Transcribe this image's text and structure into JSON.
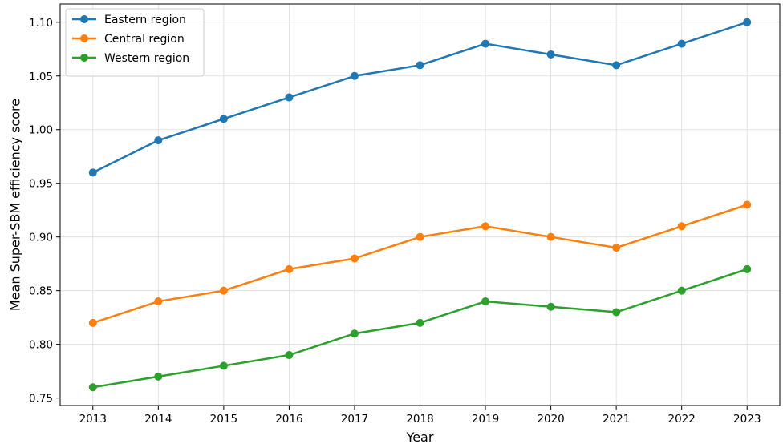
{
  "chart_data": {
    "type": "line",
    "title": "",
    "xlabel": "Year",
    "ylabel": "Mean Super-SBM efficiency score",
    "x": [
      2013,
      2014,
      2015,
      2016,
      2017,
      2018,
      2019,
      2020,
      2021,
      2022,
      2023
    ],
    "x_tick_labels": [
      "2013",
      "2014",
      "2015",
      "2016",
      "2017",
      "2018",
      "2019",
      "2020",
      "2021",
      "2022",
      "2023"
    ],
    "y_ticks": [
      0.75,
      0.8,
      0.85,
      0.9,
      0.95,
      1.0,
      1.05,
      1.1
    ],
    "y_tick_labels": [
      "0.75",
      "0.80",
      "0.85",
      "0.90",
      "0.95",
      "1.00",
      "1.05",
      "1.10"
    ],
    "xlim": [
      2012.5,
      2023.5
    ],
    "ylim": [
      0.743,
      1.117
    ],
    "grid": true,
    "legend_position": "top-left",
    "series": [
      {
        "name": "Eastern region",
        "color": "#1f77b4",
        "marker": "circle",
        "values": [
          0.96,
          0.99,
          1.01,
          1.03,
          1.05,
          1.06,
          1.08,
          1.07,
          1.06,
          1.08,
          1.1
        ]
      },
      {
        "name": "Central region",
        "color": "#ff7f0e",
        "marker": "circle",
        "values": [
          0.82,
          0.84,
          0.85,
          0.87,
          0.88,
          0.9,
          0.91,
          0.9,
          0.89,
          0.91,
          0.93
        ]
      },
      {
        "name": "Western region",
        "color": "#2ca02c",
        "marker": "circle",
        "values": [
          0.76,
          0.77,
          0.78,
          0.79,
          0.81,
          0.82,
          0.84,
          0.835,
          0.83,
          0.85,
          0.87
        ]
      }
    ]
  }
}
